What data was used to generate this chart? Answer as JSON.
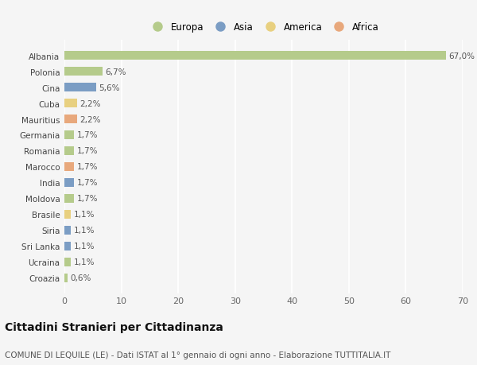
{
  "countries": [
    "Albania",
    "Polonia",
    "Cina",
    "Cuba",
    "Mauritius",
    "Germania",
    "Romania",
    "Marocco",
    "India",
    "Moldova",
    "Brasile",
    "Siria",
    "Sri Lanka",
    "Ucraina",
    "Croazia"
  ],
  "values": [
    67.0,
    6.7,
    5.6,
    2.2,
    2.2,
    1.7,
    1.7,
    1.7,
    1.7,
    1.7,
    1.1,
    1.1,
    1.1,
    1.1,
    0.6
  ],
  "labels": [
    "67,0%",
    "6,7%",
    "5,6%",
    "2,2%",
    "2,2%",
    "1,7%",
    "1,7%",
    "1,7%",
    "1,7%",
    "1,7%",
    "1,1%",
    "1,1%",
    "1,1%",
    "1,1%",
    "0,6%"
  ],
  "continents": [
    "Europa",
    "Europa",
    "Asia",
    "America",
    "Africa",
    "Europa",
    "Europa",
    "Africa",
    "Asia",
    "Europa",
    "America",
    "Asia",
    "Asia",
    "Europa",
    "Europa"
  ],
  "colors": {
    "Europa": "#b5cb8b",
    "Asia": "#7b9dc4",
    "America": "#e8d080",
    "Africa": "#e8a87c"
  },
  "xlim": [
    0,
    70
  ],
  "xticks": [
    0,
    10,
    20,
    30,
    40,
    50,
    60,
    70
  ],
  "background_color": "#f5f5f5",
  "grid_color": "#ffffff",
  "title": "Cittadini Stranieri per Cittadinanza",
  "subtitle": "COMUNE DI LEQUILE (LE) - Dati ISTAT al 1° gennaio di ogni anno - Elaborazione TUTTITALIA.IT",
  "title_fontsize": 10,
  "subtitle_fontsize": 7.5,
  "bar_height": 0.55,
  "legend_items": [
    "Europa",
    "Asia",
    "America",
    "Africa"
  ]
}
